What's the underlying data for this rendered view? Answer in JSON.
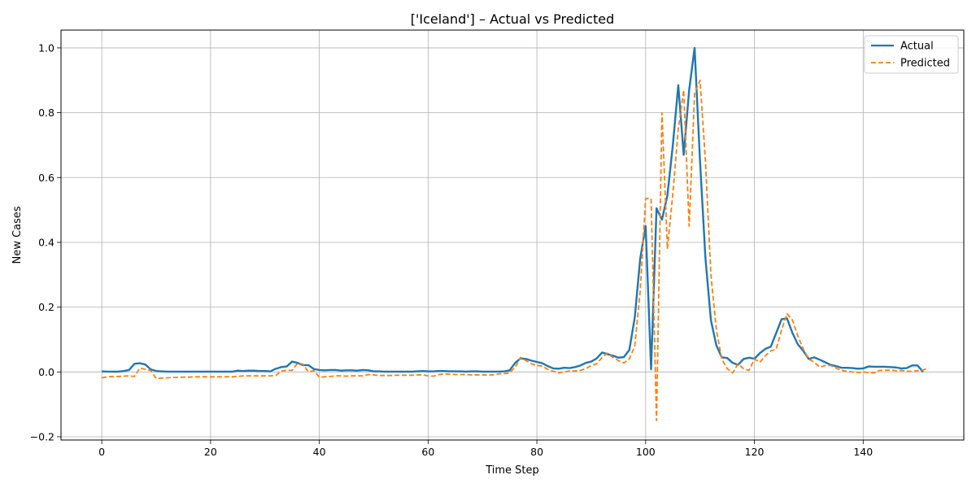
{
  "chart_data": {
    "type": "line",
    "title": "['Iceland'] – Actual vs Predicted",
    "xlabel": "Time Step",
    "ylabel": "New Cases",
    "xlim": [
      -7.5,
      158.5
    ],
    "ylim": [
      -0.21,
      1.055
    ],
    "xticks": [
      0,
      20,
      40,
      60,
      80,
      100,
      120,
      140
    ],
    "yticks": [
      -0.2,
      0.0,
      0.2,
      0.4,
      0.6,
      0.8,
      1.0
    ],
    "ytick_labels": [
      "−0.2",
      "0.0",
      "0.2",
      "0.4",
      "0.6",
      "0.8",
      "1.0"
    ],
    "grid": true,
    "legend_position": "top-right",
    "series": [
      {
        "name": "Actual",
        "color": "#1f77b4",
        "style": "solid",
        "values": [
          0.002,
          0.001,
          0.001,
          0.001,
          0.003,
          0.006,
          0.025,
          0.027,
          0.023,
          0.008,
          0.003,
          0.002,
          0.001,
          0.001,
          0.001,
          0.001,
          0.001,
          0.001,
          0.001,
          0.001,
          0.001,
          0.001,
          0.001,
          0.001,
          0.001,
          0.004,
          0.003,
          0.004,
          0.004,
          0.003,
          0.003,
          0.002,
          0.01,
          0.015,
          0.017,
          0.032,
          0.028,
          0.021,
          0.021,
          0.009,
          0.006,
          0.005,
          0.006,
          0.006,
          0.004,
          0.005,
          0.005,
          0.004,
          0.006,
          0.005,
          0.002,
          0.002,
          0.001,
          0.001,
          0.001,
          0.001,
          0.001,
          0.001,
          0.002,
          0.003,
          0.002,
          0.002,
          0.003,
          0.003,
          0.002,
          0.002,
          0.002,
          0.001,
          0.002,
          0.002,
          0.001,
          0.001,
          0.001,
          0.001,
          0.002,
          0.005,
          0.028,
          0.042,
          0.04,
          0.035,
          0.031,
          0.027,
          0.018,
          0.011,
          0.01,
          0.013,
          0.012,
          0.015,
          0.02,
          0.028,
          0.032,
          0.042,
          0.06,
          0.055,
          0.05,
          0.044,
          0.046,
          0.068,
          0.168,
          0.35,
          0.45,
          0.008,
          0.505,
          0.47,
          0.545,
          0.7,
          0.885,
          0.67,
          0.87,
          1.0,
          0.65,
          0.35,
          0.16,
          0.082,
          0.045,
          0.043,
          0.028,
          0.022,
          0.04,
          0.044,
          0.041,
          0.058,
          0.071,
          0.078,
          0.12,
          0.163,
          0.165,
          0.12,
          0.085,
          0.065,
          0.04,
          0.045,
          0.038,
          0.03,
          0.022,
          0.018,
          0.013,
          0.013,
          0.012,
          0.01,
          0.011,
          0.017,
          0.016,
          0.016,
          0.016,
          0.015,
          0.014,
          0.011,
          0.012,
          0.02,
          0.02,
          0.0
        ]
      },
      {
        "name": "Predicted",
        "color": "#ff7f0e",
        "style": "dashed",
        "values": [
          -0.018,
          -0.015,
          -0.014,
          -0.014,
          -0.013,
          -0.012,
          -0.014,
          0.012,
          0.008,
          0.004,
          -0.02,
          -0.019,
          -0.018,
          -0.017,
          -0.017,
          -0.016,
          -0.016,
          -0.015,
          -0.015,
          -0.015,
          -0.015,
          -0.015,
          -0.015,
          -0.015,
          -0.015,
          -0.014,
          -0.012,
          -0.012,
          -0.012,
          -0.012,
          -0.012,
          -0.012,
          -0.011,
          0.003,
          0.005,
          0.005,
          0.027,
          0.024,
          0.0,
          0.004,
          -0.016,
          -0.015,
          -0.014,
          -0.012,
          -0.012,
          -0.013,
          -0.012,
          -0.012,
          -0.012,
          -0.008,
          -0.009,
          -0.011,
          -0.011,
          -0.011,
          -0.01,
          -0.01,
          -0.01,
          -0.01,
          -0.009,
          -0.009,
          -0.012,
          -0.013,
          -0.008,
          -0.006,
          -0.007,
          -0.008,
          -0.008,
          -0.008,
          -0.009,
          -0.009,
          -0.009,
          -0.009,
          -0.009,
          -0.006,
          -0.005,
          -0.003,
          0.015,
          0.045,
          0.035,
          0.025,
          0.02,
          0.018,
          0.008,
          0.002,
          -0.003,
          0.0,
          0.003,
          0.003,
          0.005,
          0.01,
          0.02,
          0.025,
          0.045,
          0.058,
          0.045,
          0.035,
          0.028,
          0.04,
          0.08,
          0.25,
          0.535,
          0.535,
          -0.15,
          0.8,
          0.38,
          0.55,
          0.75,
          0.87,
          0.45,
          0.86,
          0.9,
          0.65,
          0.3,
          0.13,
          0.04,
          0.01,
          -0.003,
          0.025,
          0.01,
          0.005,
          0.04,
          0.03,
          0.05,
          0.065,
          0.07,
          0.13,
          0.18,
          0.16,
          0.11,
          0.07,
          0.04,
          0.03,
          0.015,
          0.02,
          0.02,
          0.012,
          0.005,
          0.002,
          0.0,
          -0.002,
          0.0,
          -0.002,
          -0.003,
          0.005,
          0.005,
          0.006,
          0.004,
          0.005,
          0.002,
          0.002,
          0.004,
          0.006,
          0.012
        ]
      }
    ]
  }
}
